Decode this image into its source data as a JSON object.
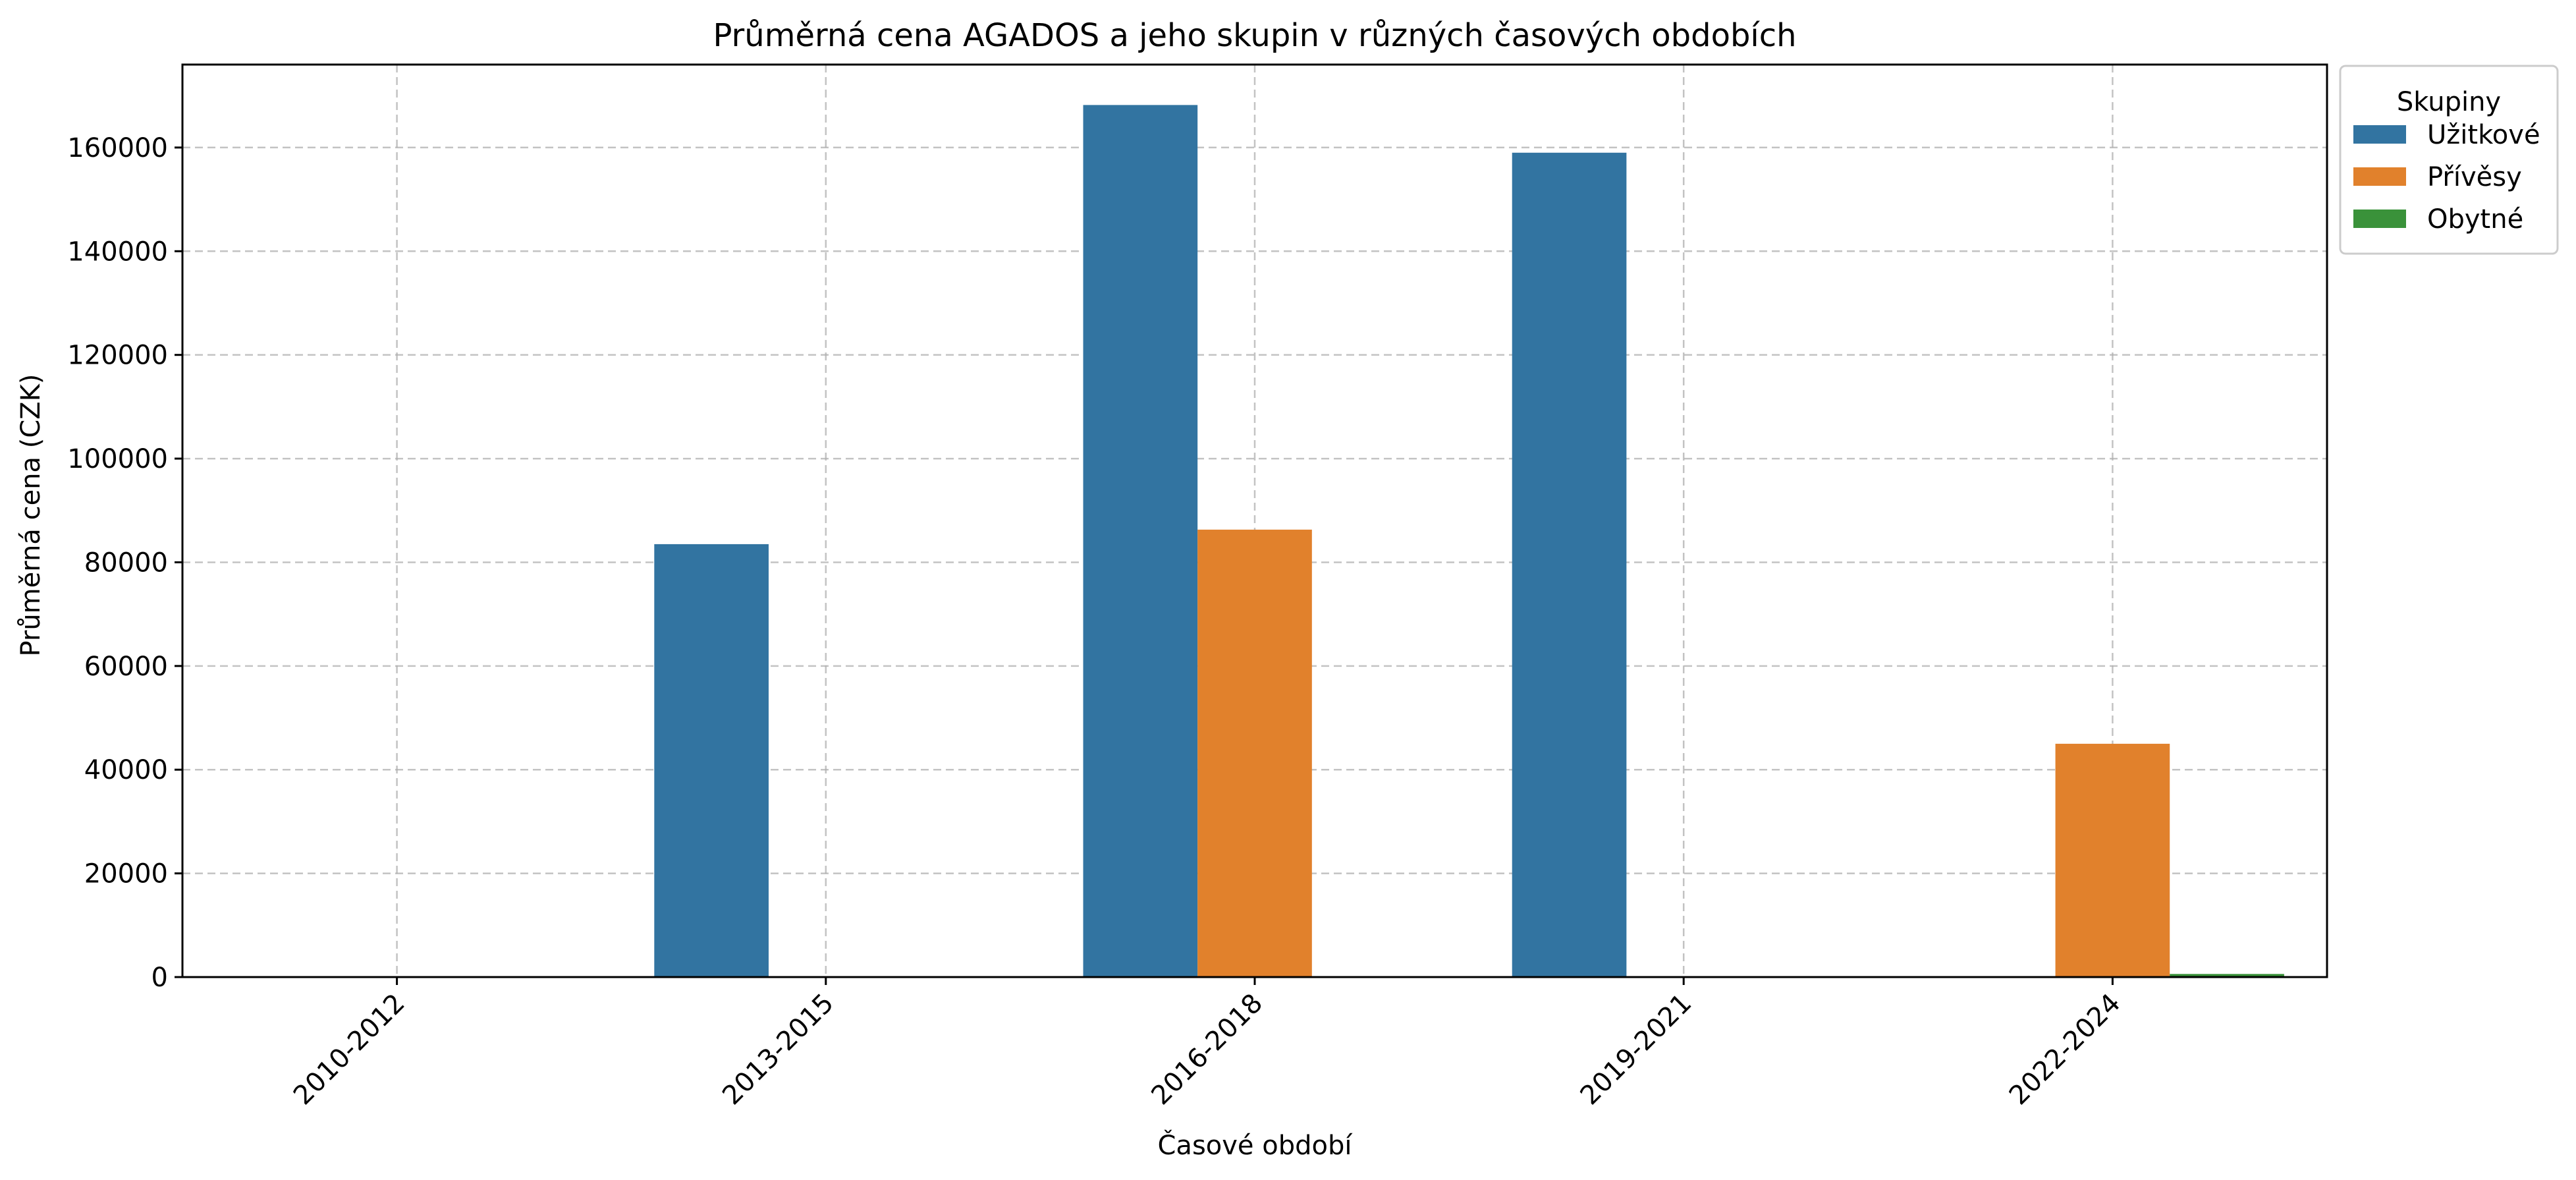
{
  "chart_data": {
    "type": "bar",
    "title": "Průměrná cena AGADOS a jeho skupin v různých časových obdobích",
    "xlabel": "Časové období",
    "ylabel": "Průměrná cena (CZK)",
    "categories": [
      "2010-2012",
      "2013-2015",
      "2016-2018",
      "2019-2021",
      "2022-2024"
    ],
    "series": [
      {
        "name": "Užitkové",
        "color": "#3274a1",
        "values": [
          0,
          83500,
          168200,
          159000,
          0
        ]
      },
      {
        "name": "Přívěsy",
        "color": "#e1812c",
        "values": [
          0,
          0,
          86300,
          0,
          45000
        ]
      },
      {
        "name": "Obytné",
        "color": "#3a923a",
        "values": [
          0,
          0,
          0,
          0,
          600
        ]
      }
    ],
    "ylim": [
      0,
      176000
    ],
    "yticks": [
      0,
      20000,
      40000,
      60000,
      80000,
      100000,
      120000,
      140000,
      160000
    ],
    "grid": true,
    "legend": {
      "title": "Skupiny",
      "placement": "outside-top-right"
    }
  }
}
